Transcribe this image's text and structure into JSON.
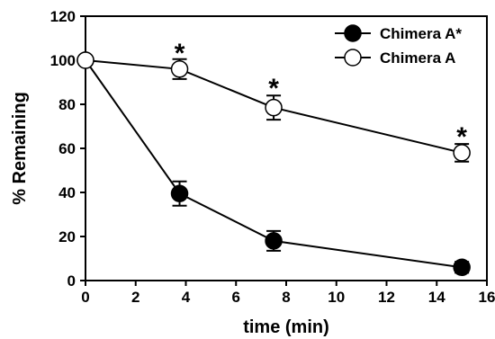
{
  "chart_data": {
    "type": "line",
    "xlabel": "time (min)",
    "ylabel": "% Remaining",
    "xlim": [
      0,
      16
    ],
    "ylim": [
      0,
      120
    ],
    "xticks": [
      "0",
      "2",
      "4",
      "6",
      "8",
      "10",
      "12",
      "14",
      "16"
    ],
    "yticks": [
      "0",
      "20",
      "40",
      "60",
      "80",
      "100",
      "120"
    ],
    "grid": false,
    "legend": "top-right",
    "series": [
      {
        "name": "Chimera A*",
        "marker": "filled-circle",
        "color": "#000000",
        "points": [
          {
            "x": 0,
            "y": 100,
            "err": 0
          },
          {
            "x": 3.75,
            "y": 39.5,
            "err": 5.5
          },
          {
            "x": 7.5,
            "y": 18,
            "err": 4.5
          },
          {
            "x": 15,
            "y": 6,
            "err": 2.5
          }
        ]
      },
      {
        "name": "Chimera A",
        "marker": "open-circle",
        "color": "#000000",
        "points": [
          {
            "x": 0,
            "y": 100,
            "err": 0
          },
          {
            "x": 3.75,
            "y": 96,
            "err": 4.5
          },
          {
            "x": 7.5,
            "y": 78.5,
            "err": 5.5
          },
          {
            "x": 15,
            "y": 58,
            "err": 4
          }
        ]
      }
    ],
    "annotations": [
      {
        "text": "*",
        "x": 3.75,
        "y": 105
      },
      {
        "text": "*",
        "x": 7.5,
        "y": 89
      },
      {
        "text": "*",
        "x": 15,
        "y": 67
      }
    ]
  }
}
